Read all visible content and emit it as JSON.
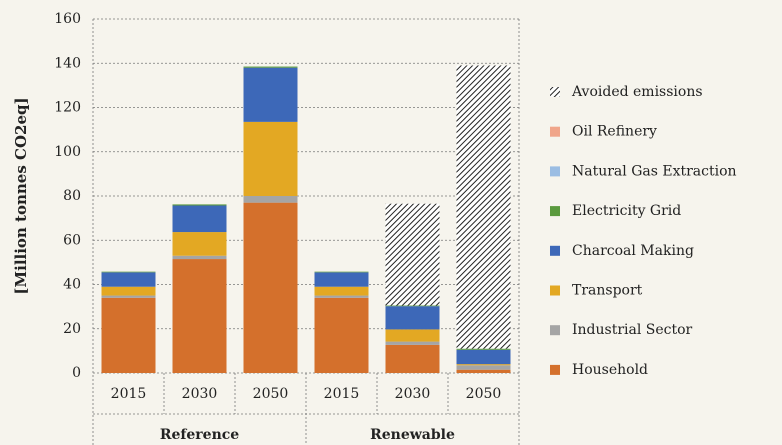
{
  "chart_data": {
    "type": "stacked_bar",
    "y_label": "[Million tonnes CO2eq]",
    "categories": [
      "2015",
      "2030",
      "2050",
      "2015",
      "2030",
      "2050"
    ],
    "groups": [
      "Reference",
      "Renewable"
    ],
    "ylim": [
      0,
      160
    ],
    "yticks": [
      0,
      20,
      40,
      60,
      80,
      100,
      120,
      140,
      160
    ],
    "grid": true,
    "series": [
      {
        "name": "Household",
        "color": "#d4702c",
        "values": [
          34,
          51.5,
          77,
          34,
          12.7,
          1.5
        ]
      },
      {
        "name": "Industrial Sector",
        "color": "#a5a5a5",
        "values": [
          1,
          1.5,
          3,
          1,
          1.5,
          2
        ]
      },
      {
        "name": "Transport",
        "color": "#e3a823",
        "values": [
          4,
          10.7,
          33.5,
          4,
          5.5,
          0.5
        ]
      },
      {
        "name": "Charcoal Making",
        "color": "#3d68b8",
        "values": [
          6.5,
          12,
          24.5,
          6.5,
          10.5,
          6.5
        ]
      },
      {
        "name": "Electricity Grid",
        "color": "#5a9a3e",
        "values": [
          0.3,
          0.5,
          0.5,
          0.3,
          0.3,
          0.5
        ]
      },
      {
        "name": "Natural Gas Extraction",
        "color": "#9bbde3",
        "values": [
          0,
          0,
          0,
          0,
          0,
          0
        ]
      },
      {
        "name": "Oil Refinery",
        "color": "#f0a58a",
        "values": [
          0,
          0,
          0,
          0,
          0,
          0
        ]
      },
      {
        "name": "Avoided emissions",
        "color": "hatch",
        "values": [
          0,
          0,
          0,
          0,
          46,
          128
        ]
      }
    ]
  }
}
